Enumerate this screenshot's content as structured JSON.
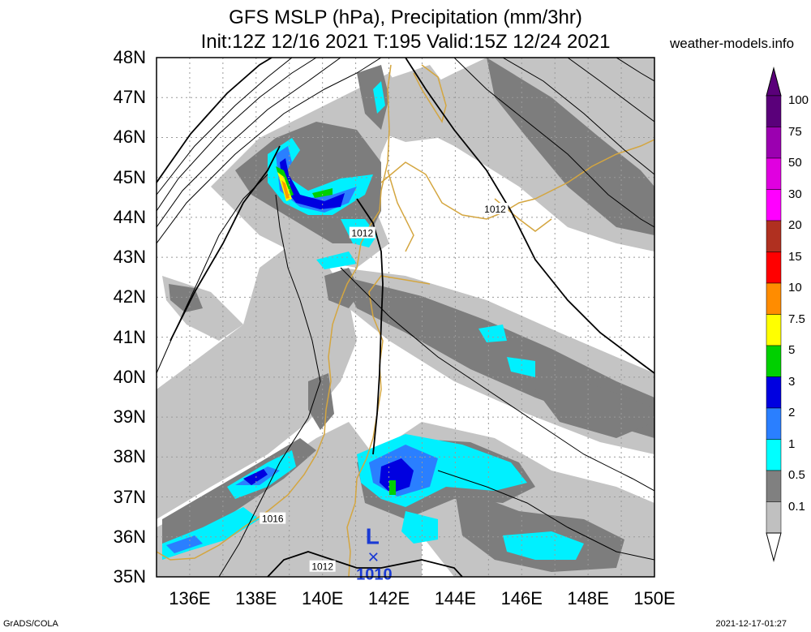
{
  "header": {
    "title_line1": "GFS MSLP (hPa), Precipitation (mm/3hr)",
    "title_line2": "Init:12Z 12/16 2021 T:195 Valid:15Z 12/24 2021",
    "site": "weather-models.info"
  },
  "footer": {
    "left": "GrADS/COLA",
    "right": "2021-12-17-01:27"
  },
  "map": {
    "lat_labels": [
      "48N",
      "47N",
      "46N",
      "45N",
      "44N",
      "43N",
      "42N",
      "41N",
      "40N",
      "39N",
      "38N",
      "37N",
      "36N",
      "35N"
    ],
    "lon_labels": [
      "136E",
      "138E",
      "140E",
      "142E",
      "144E",
      "146E",
      "148E",
      "150E"
    ],
    "isobar_labels": [
      {
        "text": "1012",
        "lon": 141.2,
        "lat": 43.6
      },
      {
        "text": "1012",
        "lon": 145.2,
        "lat": 44.2
      },
      {
        "text": "1016",
        "lon": 138.5,
        "lat": 36.45
      },
      {
        "text": "1012",
        "lon": 140.0,
        "lat": 35.25
      }
    ],
    "low": {
      "symbol": "L",
      "marker": "×",
      "value": "1010",
      "lon": 141.8,
      "lat": 35.9
    }
  },
  "colorbar": {
    "labels": [
      "100",
      "75",
      "50",
      "30",
      "20",
      "15",
      "10",
      "7.5",
      "5",
      "3",
      "2",
      "1",
      "0.5",
      "0.1"
    ],
    "colors": [
      "#5a007a",
      "#9b00b0",
      "#e000e0",
      "#ff00ff",
      "#b03020",
      "#ff0000",
      "#ff8c00",
      "#ffff00",
      "#00d000",
      "#0000e0",
      "#2a7fff",
      "#00ffff",
      "#808080",
      "#c0c0c0"
    ]
  },
  "colors": {
    "coast": "#d4a640",
    "isobar": "#000000",
    "low": "#1a3ad4",
    "grid": "#9a9a9a"
  }
}
